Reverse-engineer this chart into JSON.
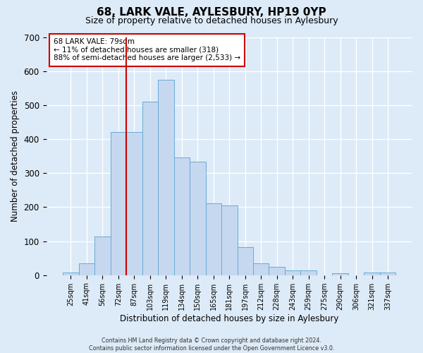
{
  "title": "68, LARK VALE, AYLESBURY, HP19 0YP",
  "subtitle": "Size of property relative to detached houses in Aylesbury",
  "xlabel": "Distribution of detached houses by size in Aylesbury",
  "ylabel": "Number of detached properties",
  "bar_labels": [
    "25sqm",
    "41sqm",
    "56sqm",
    "72sqm",
    "87sqm",
    "103sqm",
    "119sqm",
    "134sqm",
    "150sqm",
    "165sqm",
    "181sqm",
    "197sqm",
    "212sqm",
    "228sqm",
    "243sqm",
    "259sqm",
    "275sqm",
    "290sqm",
    "306sqm",
    "321sqm",
    "337sqm"
  ],
  "bar_values": [
    8,
    35,
    113,
    420,
    420,
    510,
    575,
    347,
    333,
    212,
    205,
    83,
    35,
    25,
    13,
    13,
    0,
    5,
    0,
    8,
    8
  ],
  "bar_color": "#c5d8f0",
  "bar_edge_color": "#6aaad4",
  "ylim": [
    0,
    700
  ],
  "yticks": [
    0,
    100,
    200,
    300,
    400,
    500,
    600,
    700
  ],
  "vline_color": "#cc0000",
  "annotation_title": "68 LARK VALE: 79sqm",
  "annotation_line1": "← 11% of detached houses are smaller (318)",
  "annotation_line2": "88% of semi-detached houses are larger (2,533) →",
  "annotation_box_color": "#ffffff",
  "annotation_box_edge": "#cc0000",
  "footer1": "Contains HM Land Registry data © Crown copyright and database right 2024.",
  "footer2": "Contains public sector information licensed under the Open Government Licence v3.0.",
  "background_color": "#ddeaf7",
  "plot_background": "#ddeaf7",
  "grid_color": "#ffffff",
  "title_fontsize": 11,
  "subtitle_fontsize": 9
}
